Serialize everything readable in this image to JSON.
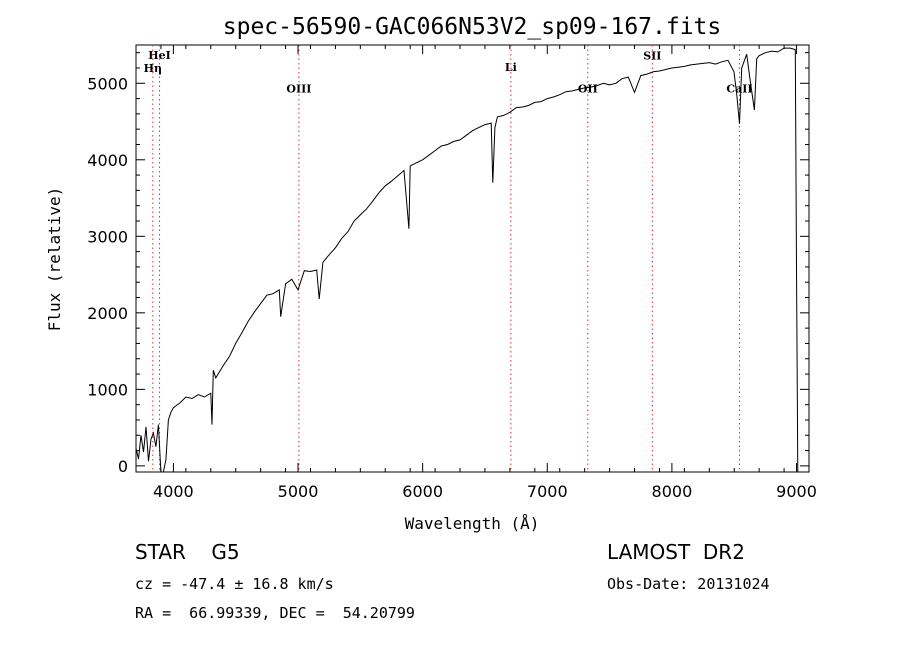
{
  "chart_data": {
    "type": "line",
    "title": "spec-56590-GAC066N53V2_sp09-167.fits",
    "xlabel": "Wavelength (Å)",
    "ylabel": "Flux (relative)",
    "xlim": [
      3700,
      9100
    ],
    "ylim": [
      -80,
      5500
    ],
    "xticks": [
      4000,
      5000,
      6000,
      7000,
      8000,
      9000
    ],
    "yticks": [
      0,
      1000,
      2000,
      3000,
      4000,
      5000
    ],
    "grid": false,
    "colors": {
      "spectrum": "#000000",
      "line_marker": "#e03030"
    },
    "line_markers": [
      {
        "label": "HeI",
        "x": 3889,
        "label_y": 5320
      },
      {
        "label": "Hη",
        "x": 3835,
        "label_y": 5150
      },
      {
        "label": "OIII",
        "x": 5007,
        "label_y": 4880
      },
      {
        "label": "Li",
        "x": 6708,
        "label_y": 5160
      },
      {
        "label": "OII",
        "x": 7325,
        "label_y": 4880
      },
      {
        "label": "SII",
        "x": 7843,
        "label_y": 5310
      },
      {
        "label": "CaII",
        "x": 8542,
        "label_y": 4880
      }
    ],
    "series": [
      {
        "x": [
          3700,
          3720,
          3740,
          3760,
          3780,
          3800,
          3820,
          3840,
          3860,
          3880,
          3900,
          3920,
          3940,
          3960,
          3980,
          4000,
          4050,
          4100,
          4150,
          4200,
          4250,
          4300,
          4310,
          4320,
          4340,
          4400,
          4450,
          4500,
          4550,
          4600,
          4650,
          4700,
          4750,
          4800,
          4850,
          4861,
          4900,
          4950,
          5000,
          5050,
          5100,
          5150,
          5170,
          5200,
          5250,
          5300,
          5350,
          5400,
          5450,
          5500,
          5550,
          5600,
          5650,
          5700,
          5750,
          5800,
          5850,
          5890,
          5900,
          5950,
          6000,
          6050,
          6100,
          6150,
          6200,
          6250,
          6300,
          6350,
          6400,
          6450,
          6500,
          6550,
          6563,
          6580,
          6600,
          6650,
          6700,
          6750,
          6800,
          6850,
          6900,
          6950,
          7000,
          7050,
          7100,
          7150,
          7200,
          7250,
          7300,
          7350,
          7400,
          7450,
          7500,
          7550,
          7600,
          7650,
          7700,
          7750,
          7800,
          7850,
          7900,
          7950,
          8000,
          8050,
          8100,
          8150,
          8200,
          8250,
          8300,
          8350,
          8400,
          8450,
          8498,
          8520,
          8542,
          8560,
          8600,
          8620,
          8662,
          8680,
          8700,
          8750,
          8800,
          8850,
          8900,
          8950,
          8990,
          9000,
          9010
        ],
        "values": [
          230,
          90,
          400,
          180,
          510,
          60,
          350,
          430,
          250,
          540,
          -120,
          -200,
          80,
          600,
          700,
          760,
          820,
          900,
          880,
          930,
          900,
          950,
          540,
          1250,
          1150,
          1310,
          1430,
          1600,
          1740,
          1890,
          2010,
          2120,
          2230,
          2250,
          2300,
          1950,
          2380,
          2440,
          2300,
          2550,
          2540,
          2560,
          2180,
          2660,
          2760,
          2850,
          2970,
          3060,
          3200,
          3280,
          3360,
          3460,
          3570,
          3660,
          3720,
          3790,
          3860,
          3100,
          3920,
          3960,
          4000,
          4060,
          4120,
          4180,
          4200,
          4240,
          4260,
          4320,
          4380,
          4420,
          4460,
          4480,
          3700,
          4420,
          4560,
          4580,
          4620,
          4680,
          4690,
          4710,
          4750,
          4760,
          4800,
          4820,
          4850,
          4890,
          4900,
          4920,
          4940,
          4950,
          4970,
          5000,
          4980,
          5000,
          5060,
          5080,
          4880,
          5100,
          5120,
          5150,
          5160,
          5180,
          5200,
          5210,
          5220,
          5240,
          5250,
          5260,
          5270,
          5250,
          5280,
          5300,
          5150,
          4860,
          4470,
          5200,
          5380,
          5130,
          4650,
          5320,
          5360,
          5400,
          5420,
          5410,
          5460,
          5460,
          5440,
          2600,
          -100
        ]
      }
    ]
  },
  "info": {
    "classification": "STAR    G5",
    "survey": "LAMOST  DR2",
    "redshift": "cz = -47.4 ± 16.8 km/s",
    "obs_date": "Obs-Date: 20131024",
    "coords": "RA =  66.99339, DEC =  54.20799"
  }
}
